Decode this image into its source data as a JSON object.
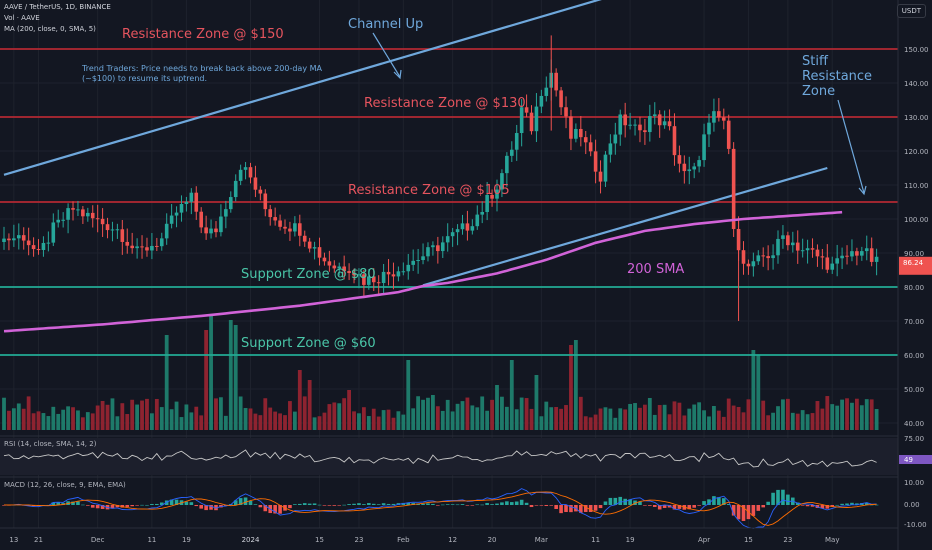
{
  "header": {
    "title": "AAVE / TetherUS, 1D, BINANCE",
    "vol_label": "Vol · AAVE",
    "ma_label": "MA (200, close, 0, SMA, 5)",
    "currency_button": "USDT"
  },
  "annotations": {
    "res150": "Resistance Zone @ $150",
    "res130": "Resistance Zone @ $130",
    "res105": "Resistance Zone @ $105",
    "sup80": "Support Zone @ $80",
    "sup60": "Support Zone @ $60",
    "channel": "Channel Up",
    "sma": "200 SMA",
    "stiff1": "Stiff",
    "stiff2": "Resistance",
    "stiff3": "Zone",
    "note1": "Trend Traders: Price needs to break back above 200-day MA",
    "note2": "(~$100) to resume its uptrend."
  },
  "chart_data": {
    "type": "line",
    "y_axis_ticks": [
      "150.00",
      "140.00",
      "130.00",
      "120.00",
      "110.00",
      "100.00",
      "90.00",
      "80.00",
      "70.00",
      "60.00",
      "50.00",
      "40.00"
    ],
    "x_axis_ticks": [
      "13",
      "21",
      "Dec",
      "11",
      "19",
      "2024",
      "15",
      "23",
      "Feb",
      "12",
      "20",
      "Mar",
      "11",
      "19",
      "Apr",
      "15",
      "23",
      "May"
    ],
    "horizontal_levels": [
      {
        "value": 150,
        "color": "#b22833"
      },
      {
        "value": 130,
        "color": "#b22833"
      },
      {
        "value": 105,
        "color": "#b22833"
      },
      {
        "value": 80,
        "color": "#22ab94"
      },
      {
        "value": 60,
        "color": "#22ab94"
      }
    ],
    "price_keypoints": [
      [
        0,
        94
      ],
      [
        4,
        95
      ],
      [
        7,
        89
      ],
      [
        10,
        97
      ],
      [
        14,
        103
      ],
      [
        18,
        100
      ],
      [
        23,
        97
      ],
      [
        27,
        90
      ],
      [
        32,
        94
      ],
      [
        35,
        102
      ],
      [
        38,
        106
      ],
      [
        41,
        95
      ],
      [
        43,
        97
      ],
      [
        46,
        108
      ],
      [
        48,
        116
      ],
      [
        50,
        112
      ],
      [
        53,
        103
      ],
      [
        56,
        99
      ],
      [
        60,
        97
      ],
      [
        62,
        93
      ],
      [
        65,
        88
      ],
      [
        67,
        86
      ],
      [
        70,
        86
      ],
      [
        73,
        82
      ],
      [
        76,
        83
      ],
      [
        78,
        84
      ],
      [
        82,
        87
      ],
      [
        86,
        90
      ],
      [
        90,
        94
      ],
      [
        94,
        98
      ],
      [
        97,
        103
      ],
      [
        100,
        110
      ],
      [
        102,
        117
      ],
      [
        104,
        125
      ],
      [
        105,
        132
      ],
      [
        107,
        127
      ],
      [
        109,
        138
      ],
      [
        111,
        143
      ],
      [
        113,
        133
      ],
      [
        115,
        124
      ],
      [
        117,
        125
      ],
      [
        119,
        118
      ],
      [
        121,
        113
      ],
      [
        123,
        123
      ],
      [
        125,
        129
      ],
      [
        127,
        128
      ],
      [
        129,
        125
      ],
      [
        131,
        130
      ],
      [
        133,
        129
      ],
      [
        135,
        126
      ],
      [
        136,
        120
      ],
      [
        138,
        113
      ],
      [
        140,
        114
      ],
      [
        142,
        124
      ],
      [
        144,
        130
      ],
      [
        146,
        129
      ],
      [
        147,
        119
      ],
      [
        148,
        99
      ],
      [
        150,
        86
      ],
      [
        152,
        86
      ],
      [
        154,
        89
      ],
      [
        156,
        90
      ],
      [
        158,
        95
      ],
      [
        160,
        93
      ],
      [
        162,
        91
      ],
      [
        164,
        90
      ],
      [
        166,
        88
      ],
      [
        168,
        86
      ],
      [
        170,
        88
      ],
      [
        172,
        90
      ],
      [
        174,
        91
      ],
      [
        176,
        88
      ],
      [
        177,
        87
      ]
    ],
    "last_price": 86.24,
    "sma200_keypoints": [
      [
        0,
        67
      ],
      [
        20,
        69
      ],
      [
        40,
        71.5
      ],
      [
        60,
        74.5
      ],
      [
        80,
        78.5
      ],
      [
        85,
        80.3
      ],
      [
        90,
        81.2
      ],
      [
        100,
        84
      ],
      [
        110,
        88
      ],
      [
        120,
        93
      ],
      [
        130,
        96.5
      ],
      [
        140,
        98.5
      ],
      [
        150,
        100
      ],
      [
        160,
        101
      ],
      [
        170,
        102
      ]
    ],
    "channel_lines": [
      [
        [
          0,
          113
        ],
        [
          150,
          177
        ]
      ],
      [
        [
          85,
          80.5
        ],
        [
          167,
          115
        ]
      ]
    ],
    "rsi": {
      "label": "RSI (14, close, SMA, 14, 2)",
      "ticks": [
        "75.00",
        "50.00"
      ],
      "current": 49
    },
    "macd": {
      "label": "MACD (12, 26, close, 9, EMA, EMA)",
      "ticks": [
        "10.00",
        "0.00",
        "-10.00"
      ],
      "current": 0.82
    }
  }
}
